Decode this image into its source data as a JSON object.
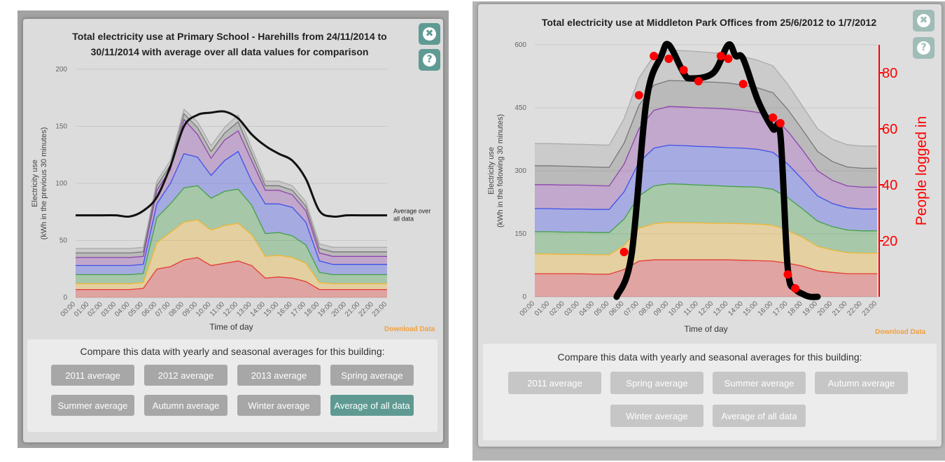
{
  "left": {
    "title": "Total electricity use at Primary School - Harehills from 24/11/2014 to 30/11/2014 with average over all data values for comparison",
    "close_glyph": "✖",
    "help_glyph": "?",
    "download_label": "Download Data",
    "compare_title": "Compare this data with yearly and seasonal averages for this building:",
    "buttons": [
      {
        "label": "2011 average",
        "active": false
      },
      {
        "label": "2012 average",
        "active": false
      },
      {
        "label": "2013 average",
        "active": false
      },
      {
        "label": "Spring average",
        "active": false
      },
      {
        "label": "Summer average",
        "active": false
      },
      {
        "label": "Autumn average",
        "active": false
      },
      {
        "label": "Winter average",
        "active": false
      },
      {
        "label": "Average of all data",
        "active": true
      }
    ]
  },
  "right": {
    "title": "Total electricity use at Middleton Park Offices from 25/6/2012 to 1/7/2012",
    "close_glyph": "✖",
    "help_glyph": "?",
    "download_label": "Download Data",
    "compare_title": "Compare this data with yearly and seasonal averages for this building:",
    "buttons": [
      {
        "label": "2011 average"
      },
      {
        "label": "Spring average"
      },
      {
        "label": "Summer average"
      },
      {
        "label": "Autumn average"
      },
      {
        "label": "Winter average"
      },
      {
        "label": "Average of all data"
      }
    ]
  },
  "chart_data": [
    {
      "type": "area",
      "stacked": true,
      "title": "Total electricity use at Primary School - Harehills from 24/11/2014 to 30/11/2014 with average over all data values for comparison",
      "xlabel": "Time of day",
      "ylabel": "Electricity use",
      "ylabel2": "(kWh in the previous 30 minutes)",
      "ylim": [
        0,
        200
      ],
      "yticks": [
        0,
        50,
        100,
        150,
        200
      ],
      "grid": true,
      "x": [
        "00:00",
        "01:00",
        "02:00",
        "03:00",
        "04:00",
        "05:00",
        "06:00",
        "07:00",
        "08:00",
        "09:00",
        "10:00",
        "11:00",
        "12:00",
        "13:00",
        "14:00",
        "15:00",
        "16:00",
        "17:00",
        "18:00",
        "19:00",
        "20:00",
        "21:00",
        "22:00",
        "23:00"
      ],
      "series": [
        {
          "color": "#e53935",
          "values": [
            7,
            7,
            7,
            7,
            7,
            8,
            25,
            27,
            33,
            35,
            28,
            30,
            32,
            28,
            17,
            18,
            17,
            14,
            7,
            7,
            7,
            7,
            7,
            7
          ]
        },
        {
          "color": "#f2b632",
          "values": [
            5,
            5,
            5,
            5,
            5,
            5,
            23,
            30,
            33,
            33,
            31,
            33,
            33,
            27,
            19,
            19,
            18,
            16,
            6,
            5,
            5,
            5,
            5,
            5
          ]
        },
        {
          "color": "#43a047",
          "values": [
            8,
            8,
            8,
            8,
            8,
            8,
            22,
            25,
            30,
            30,
            28,
            30,
            30,
            26,
            20,
            20,
            19,
            16,
            9,
            8,
            8,
            8,
            8,
            8
          ]
        },
        {
          "color": "#3f51e8",
          "values": [
            8,
            8,
            8,
            8,
            8,
            8,
            12,
            18,
            30,
            25,
            20,
            27,
            33,
            21,
            26,
            25,
            25,
            20,
            10,
            9,
            9,
            9,
            9,
            9
          ]
        },
        {
          "color": "#8e44ad",
          "values": [
            7,
            7,
            7,
            7,
            7,
            7,
            12,
            12,
            30,
            20,
            15,
            18,
            18,
            18,
            12,
            12,
            11,
            10,
            7,
            7,
            7,
            7,
            7,
            7
          ]
        },
        {
          "color": "#777777",
          "values": [
            4,
            4,
            4,
            4,
            4,
            4,
            4,
            4,
            5,
            6,
            6,
            6,
            8,
            6,
            4,
            4,
            4,
            4,
            4,
            4,
            4,
            4,
            4,
            4
          ]
        },
        {
          "color": "#aaaaaa",
          "values": [
            4,
            4,
            4,
            4,
            4,
            4,
            4,
            4,
            4,
            5,
            5,
            5,
            6,
            5,
            4,
            4,
            4,
            4,
            4,
            4,
            4,
            4,
            4,
            4
          ]
        }
      ],
      "comparison_line": {
        "label": "Average over all data",
        "values": [
          72,
          72,
          72,
          72,
          71,
          76,
          88,
          115,
          150,
          160,
          162,
          163,
          157,
          143,
          133,
          126,
          120,
          104,
          76,
          71,
          72,
          72,
          72,
          72
        ]
      }
    },
    {
      "type": "area",
      "stacked": true,
      "title": "Total electricity use at Middleton Park Offices from 25/6/2012 to 1/7/2012",
      "xlabel": "Time of day",
      "ylabel": "Electricity use",
      "ylabel2": "(kWh in the following 30 minutes)",
      "ylim": [
        0,
        600
      ],
      "yticks": [
        0,
        150,
        300,
        450,
        600
      ],
      "ylabel_right": "People logged in",
      "ylim_right": [
        0,
        90
      ],
      "yticks_right": [
        20,
        40,
        60,
        80
      ],
      "grid": true,
      "x": [
        "00:00",
        "01:00",
        "02:00",
        "03:00",
        "04:00",
        "05:00",
        "06:00",
        "07:00",
        "08:00",
        "09:00",
        "10:00",
        "11:00",
        "12:00",
        "13:00",
        "14:00",
        "15:00",
        "16:00",
        "17:00",
        "18:00",
        "19:00",
        "20:00",
        "21:00",
        "22:00",
        "23:00"
      ],
      "series": [
        {
          "color": "#e53935",
          "values": [
            55,
            55,
            55,
            55,
            54,
            54,
            65,
            85,
            88,
            88,
            88,
            88,
            88,
            88,
            87,
            86,
            85,
            80,
            73,
            62,
            58,
            55,
            55,
            55
          ]
        },
        {
          "color": "#f2b632",
          "values": [
            47,
            47,
            46,
            46,
            46,
            46,
            57,
            78,
            86,
            89,
            88,
            88,
            87,
            87,
            87,
            87,
            85,
            78,
            68,
            58,
            53,
            50,
            49,
            49
          ]
        },
        {
          "color": "#43a047",
          "values": [
            53,
            53,
            53,
            53,
            53,
            53,
            63,
            77,
            90,
            92,
            92,
            90,
            90,
            88,
            88,
            88,
            86,
            78,
            68,
            60,
            56,
            54,
            53,
            53
          ]
        },
        {
          "color": "#3f51e8",
          "values": [
            55,
            55,
            55,
            55,
            55,
            55,
            65,
            80,
            90,
            92,
            92,
            92,
            92,
            92,
            92,
            90,
            88,
            80,
            70,
            60,
            55,
            53,
            52,
            52
          ]
        },
        {
          "color": "#8e44ad",
          "values": [
            57,
            57,
            57,
            57,
            57,
            56,
            66,
            80,
            90,
            92,
            92,
            92,
            92,
            92,
            90,
            88,
            86,
            78,
            70,
            60,
            55,
            52,
            52,
            52
          ]
        },
        {
          "color": "#777777",
          "values": [
            45,
            45,
            45,
            44,
            44,
            44,
            50,
            56,
            60,
            62,
            62,
            62,
            62,
            62,
            60,
            58,
            56,
            52,
            48,
            46,
            45,
            45,
            45,
            45
          ]
        },
        {
          "color": "#aaaaaa",
          "values": [
            53,
            53,
            53,
            53,
            53,
            53,
            58,
            65,
            70,
            72,
            72,
            72,
            70,
            70,
            68,
            66,
            64,
            60,
            56,
            54,
            53,
            53,
            53,
            53
          ]
        }
      ],
      "people_logged_in": {
        "label": "People logged in",
        "color": "#ff0000",
        "x": [
          "05:30",
          "06:30",
          "07:30",
          "08:30",
          "09:00",
          "10:00",
          "10:30",
          "12:00",
          "13:00",
          "13:30",
          "14:00",
          "15:00",
          "16:00",
          "16:30",
          "17:00",
          "17:30",
          "18:00",
          "18:30",
          "19:00"
        ],
        "values": [
          0,
          15,
          70,
          86,
          90,
          80,
          78,
          80,
          90,
          86,
          85,
          70,
          60,
          58,
          10,
          3,
          1,
          0,
          0
        ],
        "markers": [
          {
            "x": "06:00",
            "y": 16
          },
          {
            "x": "07:00",
            "y": 72
          },
          {
            "x": "08:00",
            "y": 86
          },
          {
            "x": "09:00",
            "y": 85
          },
          {
            "x": "10:00",
            "y": 81
          },
          {
            "x": "11:00",
            "y": 77
          },
          {
            "x": "12:30",
            "y": 86
          },
          {
            "x": "13:00",
            "y": 85
          },
          {
            "x": "14:00",
            "y": 76
          },
          {
            "x": "16:00",
            "y": 64
          },
          {
            "x": "16:30",
            "y": 62
          },
          {
            "x": "17:00",
            "y": 8
          },
          {
            "x": "17:30",
            "y": 3
          }
        ]
      }
    }
  ]
}
